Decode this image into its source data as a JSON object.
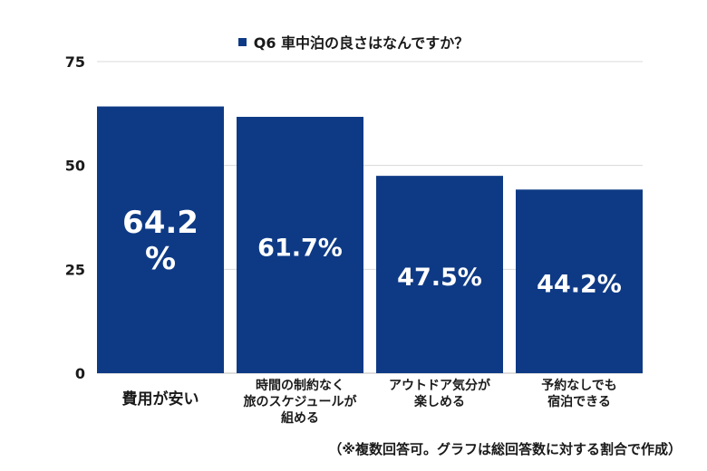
{
  "chart_data": {
    "type": "bar",
    "title": "",
    "legend": {
      "label": "Q6 車中泊の良さはなんですか？",
      "color": "#0e3a85",
      "placement": "top-center"
    },
    "categories": [
      [
        "費用が安い"
      ],
      [
        "時間の制約なく",
        "旅のスケジュールが",
        "組める"
      ],
      [
        "アウトドア気分が",
        "楽しめる"
      ],
      [
        "予約なしでも",
        "宿泊できる"
      ]
    ],
    "values": [
      64.2,
      61.7,
      47.5,
      44.2
    ],
    "data_labels": [
      [
        "64.2",
        "%"
      ],
      [
        "61.7%"
      ],
      [
        "47.5%"
      ],
      [
        "44.2%"
      ]
    ],
    "ylim": [
      0,
      75
    ],
    "yticks": [
      0,
      25,
      50,
      75
    ],
    "xlabel": "",
    "ylabel": "",
    "grid": true,
    "bar_color": "#0e3a85"
  },
  "footnote": "（※複数回答可。グラフは総回答数に対する割合で作成）"
}
